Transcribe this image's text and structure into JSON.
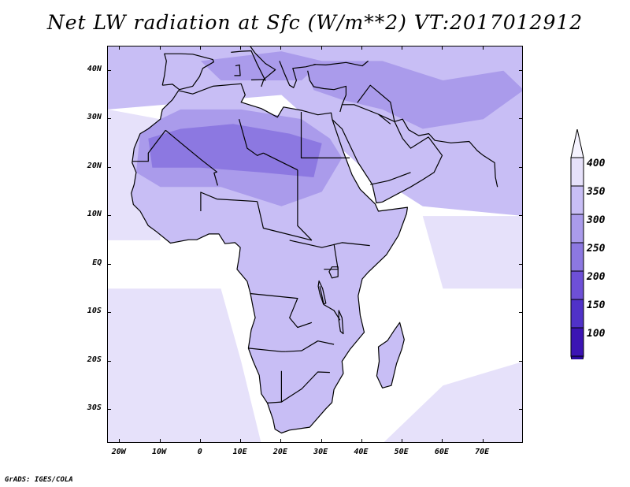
{
  "title": "Net LW radiation at Sfc (W/m**2) VT:2017012912",
  "footer": "GrADS: IGES/COLA",
  "map": {
    "lon_range": [
      -23,
      80
    ],
    "lat_range": [
      -37,
      45
    ],
    "lon_ticks": [
      {
        "value": -20,
        "label": "20W"
      },
      {
        "value": -10,
        "label": "10W"
      },
      {
        "value": 0,
        "label": "0"
      },
      {
        "value": 10,
        "label": "10E"
      },
      {
        "value": 20,
        "label": "20E"
      },
      {
        "value": 30,
        "label": "30E"
      },
      {
        "value": 40,
        "label": "40E"
      },
      {
        "value": 50,
        "label": "50E"
      },
      {
        "value": 60,
        "label": "60E"
      },
      {
        "value": 70,
        "label": "70E"
      }
    ],
    "lat_ticks": [
      {
        "value": 40,
        "label": "40N"
      },
      {
        "value": 30,
        "label": "30N"
      },
      {
        "value": 20,
        "label": "20N"
      },
      {
        "value": 10,
        "label": "10N"
      },
      {
        "value": 0,
        "label": "EQ"
      },
      {
        "value": -10,
        "label": "10S"
      },
      {
        "value": -20,
        "label": "20S"
      },
      {
        "value": -30,
        "label": "30S"
      }
    ]
  },
  "colorbar": {
    "levels": [
      "100",
      "150",
      "200",
      "250",
      "300",
      "350",
      "400"
    ],
    "colors": [
      "#3c14b4",
      "#5032c8",
      "#6e50d7",
      "#8c78e1",
      "#aa9beb",
      "#c8bef5",
      "#e6e1fa"
    ],
    "above_color": "#f5f3ff",
    "below_color": "#2a0aa0"
  },
  "shading_colors": {
    "ocean_low": "#ffffff",
    "ocean_mid": "#e6e1fa",
    "land_350": "#c8bef5",
    "land_300": "#aa9beb",
    "land_250": "#8c78e1"
  }
}
